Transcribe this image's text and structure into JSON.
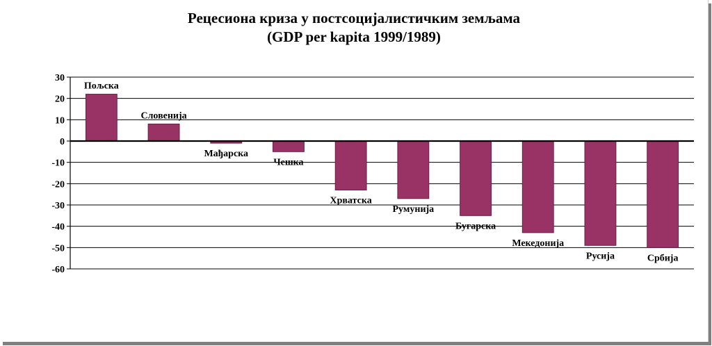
{
  "chart_data": {
    "type": "bar",
    "title": "Рецесиона криза у постсоцијалистичким  земљама",
    "subtitle": "(GDP per kapita 1999/1989)",
    "xlabel": "",
    "ylabel": "",
    "categories": [
      "Пољска",
      "Словенија",
      "Мађарска",
      "Чешка",
      "Хрватска",
      "Румунија",
      "Бугарска",
      "Мекедонија",
      "Русија",
      "Србија"
    ],
    "values": [
      22,
      8,
      -1,
      -5,
      -23,
      -27,
      -35,
      -43,
      -49,
      -50
    ],
    "ylim": [
      -60,
      30
    ],
    "yticks": [
      "30",
      "20",
      "10",
      "0",
      "-10",
      "-20",
      "-30",
      "-40",
      "-50",
      "-60"
    ],
    "grid": true,
    "legend": "none",
    "colors": {
      "bar": "#993366",
      "bar_edge": "#6b1f46",
      "axis": "#000000",
      "grid": "#000000"
    }
  }
}
